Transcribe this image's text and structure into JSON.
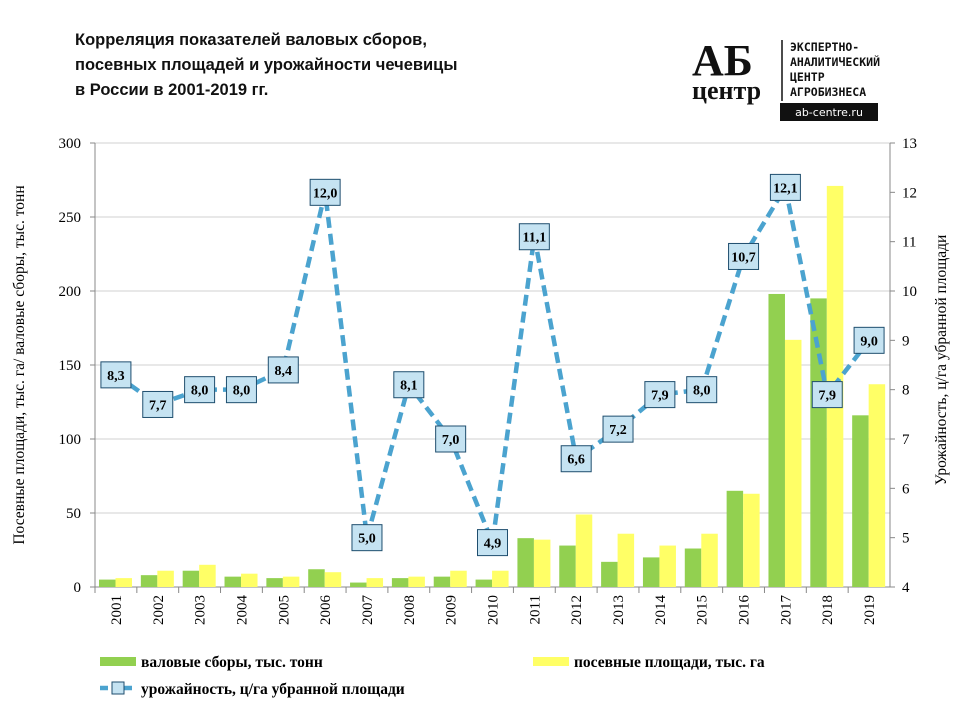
{
  "title_lines": [
    "Корреляция показателей валовых сборов,",
    "посевных площадей и урожайности чечевицы",
    "в России в 2001-2019 гг."
  ],
  "logo": {
    "mark": "АБ",
    "word": "центр",
    "lines": [
      "ЭКСПЕРТНО-",
      "АНАЛИТИЧЕСКИЙ",
      "ЦЕНТР",
      "АГРОБИЗНЕСА"
    ],
    "url": "ab-centre.ru"
  },
  "chart_data": {
    "type": "bar+line",
    "categories": [
      "2001",
      "2002",
      "2003",
      "2004",
      "2005",
      "2006",
      "2007",
      "2008",
      "2009",
      "2010",
      "2011",
      "2012",
      "2013",
      "2014",
      "2015",
      "2016",
      "2017",
      "2018",
      "2019"
    ],
    "series": [
      {
        "name": "валовые сборы, тыс. тонн",
        "type": "bar",
        "axis": "left",
        "color": "#92d050",
        "values": [
          5,
          8,
          11,
          7,
          6,
          12,
          3,
          6,
          7,
          5,
          33,
          28,
          17,
          20,
          26,
          65,
          198,
          195,
          116
        ]
      },
      {
        "name": "посевные площади, тыс. га",
        "type": "bar",
        "axis": "left",
        "color": "#ffff66",
        "values": [
          6,
          11,
          15,
          9,
          7,
          10,
          6,
          7,
          11,
          11,
          32,
          49,
          36,
          28,
          36,
          63,
          167,
          271,
          137
        ]
      },
      {
        "name": "урожайность, ц/га убранной площади",
        "type": "line",
        "axis": "right",
        "color": "#4ba3cf",
        "values": [
          8.3,
          7.7,
          8.0,
          8.0,
          8.4,
          12.0,
          5.0,
          8.1,
          7.0,
          4.9,
          11.1,
          6.6,
          7.2,
          7.9,
          8.0,
          10.7,
          12.1,
          7.9,
          9.0
        ],
        "labels": [
          "8,3",
          "7,7",
          "8,0",
          "8,0",
          "8,4",
          "12,0",
          "5,0",
          "8,1",
          "7,0",
          "4,9",
          "11,1",
          "6,6",
          "7,2",
          "7,9",
          "8,0",
          "10,7",
          "12,1",
          "7,9",
          "9,0"
        ]
      }
    ],
    "ylabel_left": "Посевные площади, тыс. га/ валовые сборы, тыс. тонн",
    "ylabel_right": "Урожайность, ц/га убранной площади",
    "ylim_left": [
      0,
      300
    ],
    "yticks_left": [
      "0",
      "50",
      "100",
      "150",
      "200",
      "250",
      "300"
    ],
    "ylim_right": [
      4,
      13
    ],
    "yticks_right": [
      "4",
      "5",
      "6",
      "7",
      "8",
      "9",
      "10",
      "11",
      "12",
      "13"
    ],
    "grid": true,
    "legend_position": "bottom"
  }
}
